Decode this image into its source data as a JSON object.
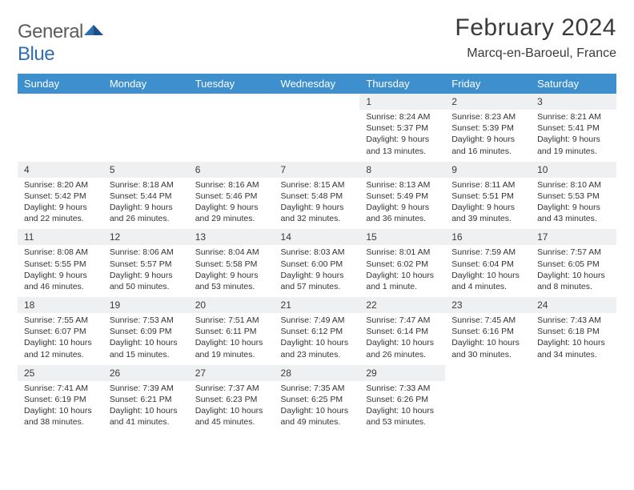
{
  "brand": {
    "word1": "General",
    "word2": "Blue"
  },
  "title": "February 2024",
  "subtitle": "Marcq-en-Baroeul, France",
  "colors": {
    "header_bg": "#3d8fce",
    "header_text": "#ffffff",
    "daynum_bg": "#eef0f1",
    "row_border": "#7a8a94",
    "text": "#333333",
    "title_text": "#3a3a3a",
    "logo_gray": "#5c5c5c",
    "logo_blue": "#2f6fb1",
    "page_bg": "#ffffff"
  },
  "fonts": {
    "title_size": 30,
    "subtitle_size": 16,
    "header_size": 13,
    "daynum_size": 12,
    "detail_size": 10.5
  },
  "weekdays": [
    "Sunday",
    "Monday",
    "Tuesday",
    "Wednesday",
    "Thursday",
    "Friday",
    "Saturday"
  ],
  "weeks": [
    [
      null,
      null,
      null,
      null,
      {
        "n": "1",
        "sunrise": "8:24 AM",
        "sunset": "5:37 PM",
        "daylight": "9 hours and 13 minutes."
      },
      {
        "n": "2",
        "sunrise": "8:23 AM",
        "sunset": "5:39 PM",
        "daylight": "9 hours and 16 minutes."
      },
      {
        "n": "3",
        "sunrise": "8:21 AM",
        "sunset": "5:41 PM",
        "daylight": "9 hours and 19 minutes."
      }
    ],
    [
      {
        "n": "4",
        "sunrise": "8:20 AM",
        "sunset": "5:42 PM",
        "daylight": "9 hours and 22 minutes."
      },
      {
        "n": "5",
        "sunrise": "8:18 AM",
        "sunset": "5:44 PM",
        "daylight": "9 hours and 26 minutes."
      },
      {
        "n": "6",
        "sunrise": "8:16 AM",
        "sunset": "5:46 PM",
        "daylight": "9 hours and 29 minutes."
      },
      {
        "n": "7",
        "sunrise": "8:15 AM",
        "sunset": "5:48 PM",
        "daylight": "9 hours and 32 minutes."
      },
      {
        "n": "8",
        "sunrise": "8:13 AM",
        "sunset": "5:49 PM",
        "daylight": "9 hours and 36 minutes."
      },
      {
        "n": "9",
        "sunrise": "8:11 AM",
        "sunset": "5:51 PM",
        "daylight": "9 hours and 39 minutes."
      },
      {
        "n": "10",
        "sunrise": "8:10 AM",
        "sunset": "5:53 PM",
        "daylight": "9 hours and 43 minutes."
      }
    ],
    [
      {
        "n": "11",
        "sunrise": "8:08 AM",
        "sunset": "5:55 PM",
        "daylight": "9 hours and 46 minutes."
      },
      {
        "n": "12",
        "sunrise": "8:06 AM",
        "sunset": "5:57 PM",
        "daylight": "9 hours and 50 minutes."
      },
      {
        "n": "13",
        "sunrise": "8:04 AM",
        "sunset": "5:58 PM",
        "daylight": "9 hours and 53 minutes."
      },
      {
        "n": "14",
        "sunrise": "8:03 AM",
        "sunset": "6:00 PM",
        "daylight": "9 hours and 57 minutes."
      },
      {
        "n": "15",
        "sunrise": "8:01 AM",
        "sunset": "6:02 PM",
        "daylight": "10 hours and 1 minute."
      },
      {
        "n": "16",
        "sunrise": "7:59 AM",
        "sunset": "6:04 PM",
        "daylight": "10 hours and 4 minutes."
      },
      {
        "n": "17",
        "sunrise": "7:57 AM",
        "sunset": "6:05 PM",
        "daylight": "10 hours and 8 minutes."
      }
    ],
    [
      {
        "n": "18",
        "sunrise": "7:55 AM",
        "sunset": "6:07 PM",
        "daylight": "10 hours and 12 minutes."
      },
      {
        "n": "19",
        "sunrise": "7:53 AM",
        "sunset": "6:09 PM",
        "daylight": "10 hours and 15 minutes."
      },
      {
        "n": "20",
        "sunrise": "7:51 AM",
        "sunset": "6:11 PM",
        "daylight": "10 hours and 19 minutes."
      },
      {
        "n": "21",
        "sunrise": "7:49 AM",
        "sunset": "6:12 PM",
        "daylight": "10 hours and 23 minutes."
      },
      {
        "n": "22",
        "sunrise": "7:47 AM",
        "sunset": "6:14 PM",
        "daylight": "10 hours and 26 minutes."
      },
      {
        "n": "23",
        "sunrise": "7:45 AM",
        "sunset": "6:16 PM",
        "daylight": "10 hours and 30 minutes."
      },
      {
        "n": "24",
        "sunrise": "7:43 AM",
        "sunset": "6:18 PM",
        "daylight": "10 hours and 34 minutes."
      }
    ],
    [
      {
        "n": "25",
        "sunrise": "7:41 AM",
        "sunset": "6:19 PM",
        "daylight": "10 hours and 38 minutes."
      },
      {
        "n": "26",
        "sunrise": "7:39 AM",
        "sunset": "6:21 PM",
        "daylight": "10 hours and 41 minutes."
      },
      {
        "n": "27",
        "sunrise": "7:37 AM",
        "sunset": "6:23 PM",
        "daylight": "10 hours and 45 minutes."
      },
      {
        "n": "28",
        "sunrise": "7:35 AM",
        "sunset": "6:25 PM",
        "daylight": "10 hours and 49 minutes."
      },
      {
        "n": "29",
        "sunrise": "7:33 AM",
        "sunset": "6:26 PM",
        "daylight": "10 hours and 53 minutes."
      },
      null,
      null
    ]
  ],
  "labels": {
    "sunrise": "Sunrise:",
    "sunset": "Sunset:",
    "daylight": "Daylight:"
  }
}
